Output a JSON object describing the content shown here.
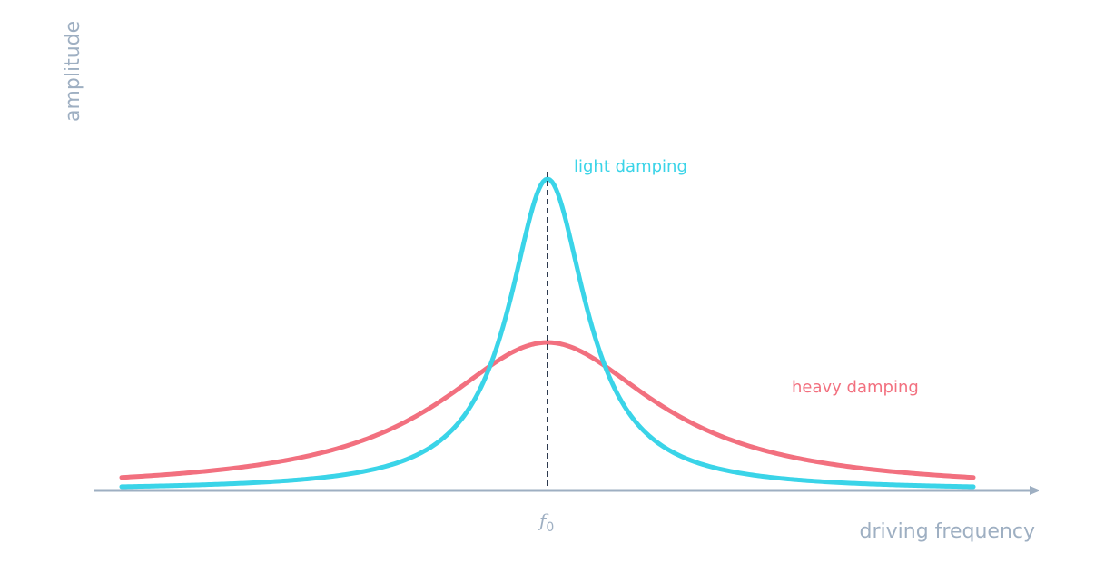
{
  "chart_data": {
    "type": "line",
    "xlabel": "driving frequency",
    "ylabel": "amplitude",
    "x_domain": [
      -1,
      1
    ],
    "y_domain": [
      0,
      1
    ],
    "resonance": {
      "tick_label": "f",
      "tick_subscript": "0",
      "x": 0,
      "line_color": "#2d3a4f"
    },
    "axis_color": "#9eafc2",
    "series": [
      {
        "name": "heavy damping",
        "color": "#f2707f",
        "peak": 0.475,
        "width": 0.31
      },
      {
        "name": "light damping",
        "color": "#3ad4e8",
        "peak": 1.0,
        "width": 0.11
      }
    ]
  }
}
